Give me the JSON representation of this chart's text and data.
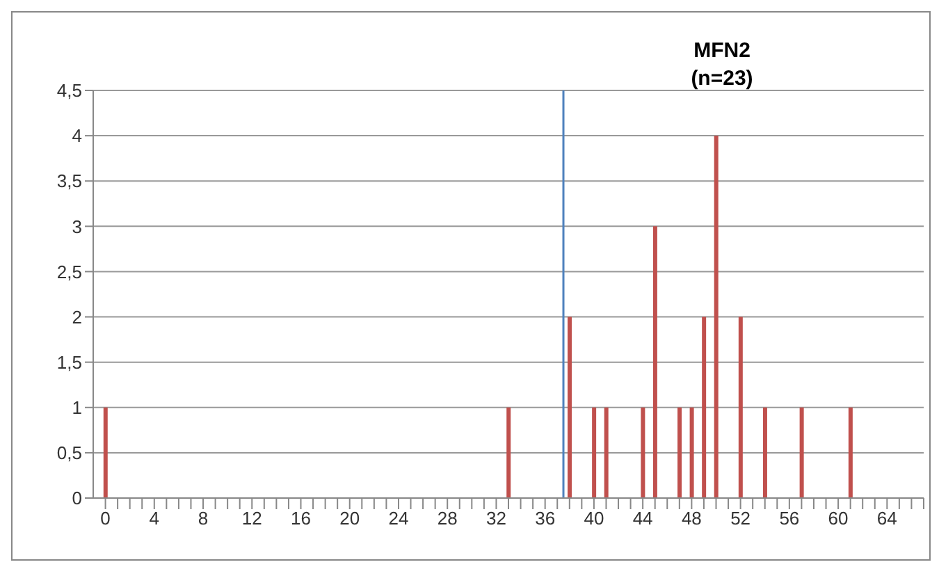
{
  "chart_data": {
    "type": "bar",
    "title": "MFN2\n(n=23)",
    "x": [
      0,
      33,
      38,
      40,
      41,
      44,
      45,
      47,
      48,
      49,
      50,
      52,
      54,
      57,
      61
    ],
    "values": [
      1,
      1,
      2,
      1,
      1,
      1,
      3,
      1,
      1,
      2,
      4,
      2,
      1,
      1,
      1
    ],
    "color": "#c0504d",
    "xlim": [
      -1,
      67
    ],
    "xticks": [
      0,
      {
        "value": 1,
        "label": null
      },
      {
        "value": 2,
        "label": null
      },
      {
        "value": 3,
        "label": null
      },
      4,
      {
        "value": 5,
        "label": null
      },
      {
        "value": 6,
        "label": null
      },
      {
        "value": 7,
        "label": null
      },
      8,
      {
        "value": 9,
        "label": null
      },
      {
        "value": 10,
        "label": null
      },
      {
        "value": 11,
        "label": null
      },
      12,
      {
        "value": 13,
        "label": null
      },
      {
        "value": 14,
        "label": null
      },
      {
        "value": 15,
        "label": null
      },
      16,
      {
        "value": 17,
        "label": null
      },
      {
        "value": 18,
        "label": null
      },
      {
        "value": 19,
        "label": null
      },
      20,
      {
        "value": 21,
        "label": null
      },
      {
        "value": 22,
        "label": null
      },
      {
        "value": 23,
        "label": null
      },
      24,
      {
        "value": 25,
        "label": null
      },
      {
        "value": 26,
        "label": null
      },
      {
        "value": 27,
        "label": null
      },
      28,
      {
        "value": 29,
        "label": null
      },
      {
        "value": 30,
        "label": null
      },
      {
        "value": 31,
        "label": null
      },
      32,
      {
        "value": 33,
        "label": null
      },
      {
        "value": 34,
        "label": null
      },
      {
        "value": 35,
        "label": null
      },
      36,
      {
        "value": 37,
        "label": null
      },
      {
        "value": 38,
        "label": null
      },
      {
        "value": 39,
        "label": null
      },
      40,
      {
        "value": 41,
        "label": null
      },
      {
        "value": 42,
        "label": null
      },
      {
        "value": 43,
        "label": null
      },
      44,
      {
        "value": 45,
        "label": null
      },
      {
        "value": 46,
        "label": null
      },
      {
        "value": 47,
        "label": null
      },
      48,
      {
        "value": 49,
        "label": null
      },
      {
        "value": 50,
        "label": null
      },
      {
        "value": 51,
        "label": null
      },
      52,
      {
        "value": 53,
        "label": null
      },
      {
        "value": 54,
        "label": null
      },
      {
        "value": 55,
        "label": null
      },
      56,
      {
        "value": 57,
        "label": null
      },
      {
        "value": 58,
        "label": null
      },
      {
        "value": 59,
        "label": null
      },
      60,
      {
        "value": 61,
        "label": null
      },
      {
        "value": 62,
        "label": null
      },
      {
        "value": 63,
        "label": null
      },
      64,
      {
        "value": 65,
        "label": null
      },
      {
        "value": 66,
        "label": null
      },
      {
        "value": 67,
        "label": null
      }
    ],
    "ylim": [
      0,
      4.5
    ],
    "yticks": [
      0,
      {
        "value": 0.5,
        "label": "0,5"
      },
      1,
      {
        "value": 1.5,
        "label": "1,5"
      },
      2,
      {
        "value": 2.5,
        "label": "2,5"
      },
      3,
      {
        "value": 3.5,
        "label": "3,5"
      },
      4,
      {
        "value": 4.5,
        "label": "4,5"
      }
    ],
    "grid": "y",
    "ref_lines": [
      {
        "axis": "x",
        "value": 37.5,
        "color": "#4f81bd"
      }
    ]
  }
}
